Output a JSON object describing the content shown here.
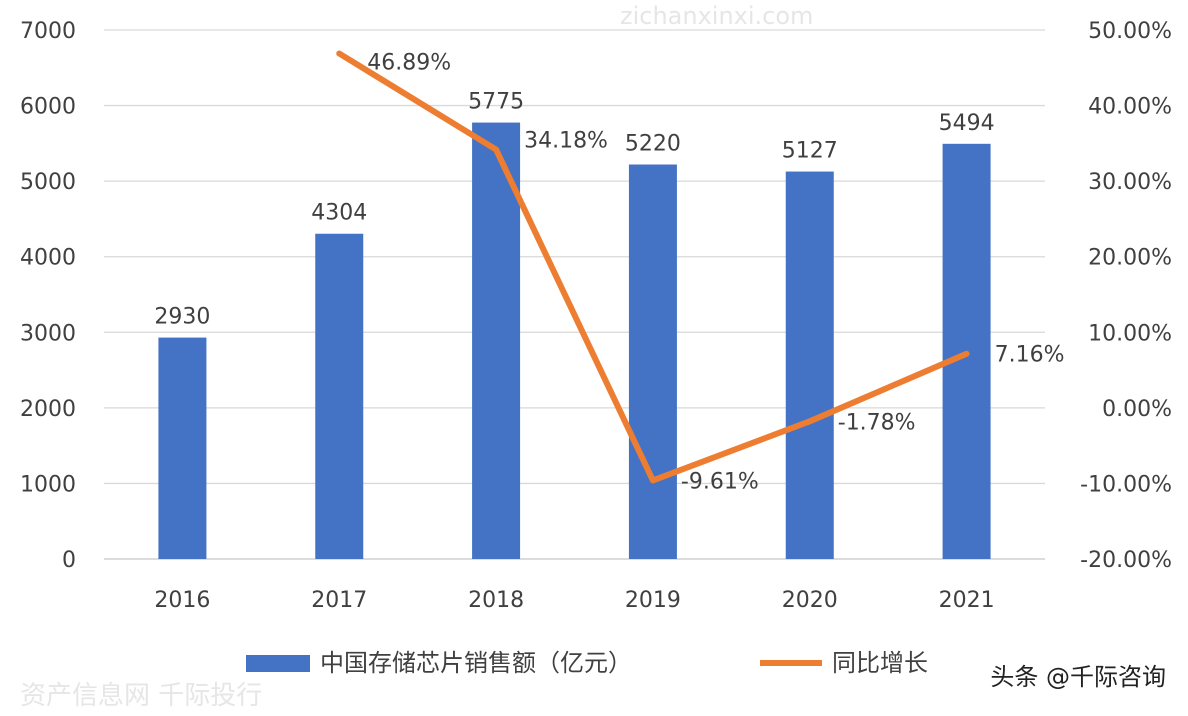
{
  "chart_data": {
    "type": "bar+line",
    "categories": [
      "2016",
      "2017",
      "2018",
      "2019",
      "2020",
      "2021"
    ],
    "series": [
      {
        "name": "中国存储芯片销售额（亿元）",
        "type": "bar",
        "axis": "left",
        "values": [
          2930,
          4304,
          5775,
          5220,
          5127,
          5494
        ],
        "labels": [
          "2930",
          "4304",
          "5775",
          "5220",
          "5127",
          "5494"
        ],
        "color": "#4472C4"
      },
      {
        "name": "同比增长",
        "type": "line",
        "axis": "right",
        "values": [
          null,
          46.89,
          34.18,
          -9.61,
          -1.78,
          7.16
        ],
        "labels": [
          "",
          "46.89%",
          "34.18%",
          "-9.61%",
          "-1.78%",
          "7.16%"
        ],
        "color": "#ED7D31"
      }
    ],
    "y_left": {
      "lim": [
        0,
        7000
      ],
      "ticks": [
        "0",
        "1000",
        "2000",
        "3000",
        "4000",
        "5000",
        "6000",
        "7000"
      ]
    },
    "y_right": {
      "lim": [
        -20,
        50
      ],
      "ticks": [
        "-20.00%",
        "-10.00%",
        "0.00%",
        "10.00%",
        "20.00%",
        "30.00%",
        "40.00%",
        "50.00%"
      ]
    },
    "grid": true,
    "legend": "bottom"
  },
  "watermark": "头条 @千际咨询",
  "background_watermarks": [
    "资产信息网 千际投行",
    "zichanxinxi.com"
  ]
}
